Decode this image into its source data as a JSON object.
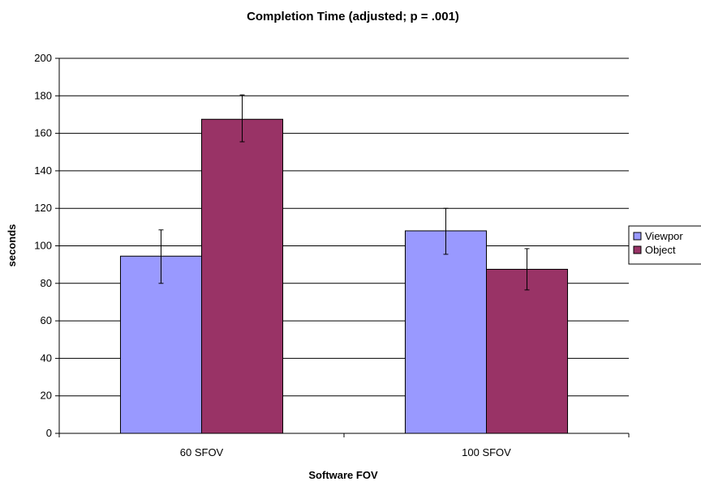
{
  "chart_data": {
    "type": "bar",
    "title": "Completion Time (adjusted; p = .001)",
    "xlabel": "Software FOV",
    "ylabel": "seconds",
    "categories": [
      "60 SFOV",
      "100 SFOV"
    ],
    "ylim": [
      0,
      200
    ],
    "yticks": [
      0,
      20,
      40,
      60,
      80,
      100,
      120,
      140,
      160,
      180,
      200
    ],
    "ytick_labels": [
      "0",
      "20",
      "40",
      "60",
      "80",
      "100",
      "120",
      "140",
      "160",
      "180",
      "200"
    ],
    "grid": true,
    "legend": "right",
    "series": [
      {
        "name": "Viewport",
        "legend_label": "Viewpor",
        "color": "#9999ff",
        "values": [
          94.5,
          108
        ],
        "error_low": [
          80,
          95.5
        ],
        "error_high": [
          108.5,
          120
        ]
      },
      {
        "name": "Object",
        "legend_label": "Object",
        "color": "#993366",
        "values": [
          167.5,
          87.5
        ],
        "error_low": [
          155.5,
          76.5
        ],
        "error_high": [
          180.5,
          98.5
        ]
      }
    ]
  }
}
